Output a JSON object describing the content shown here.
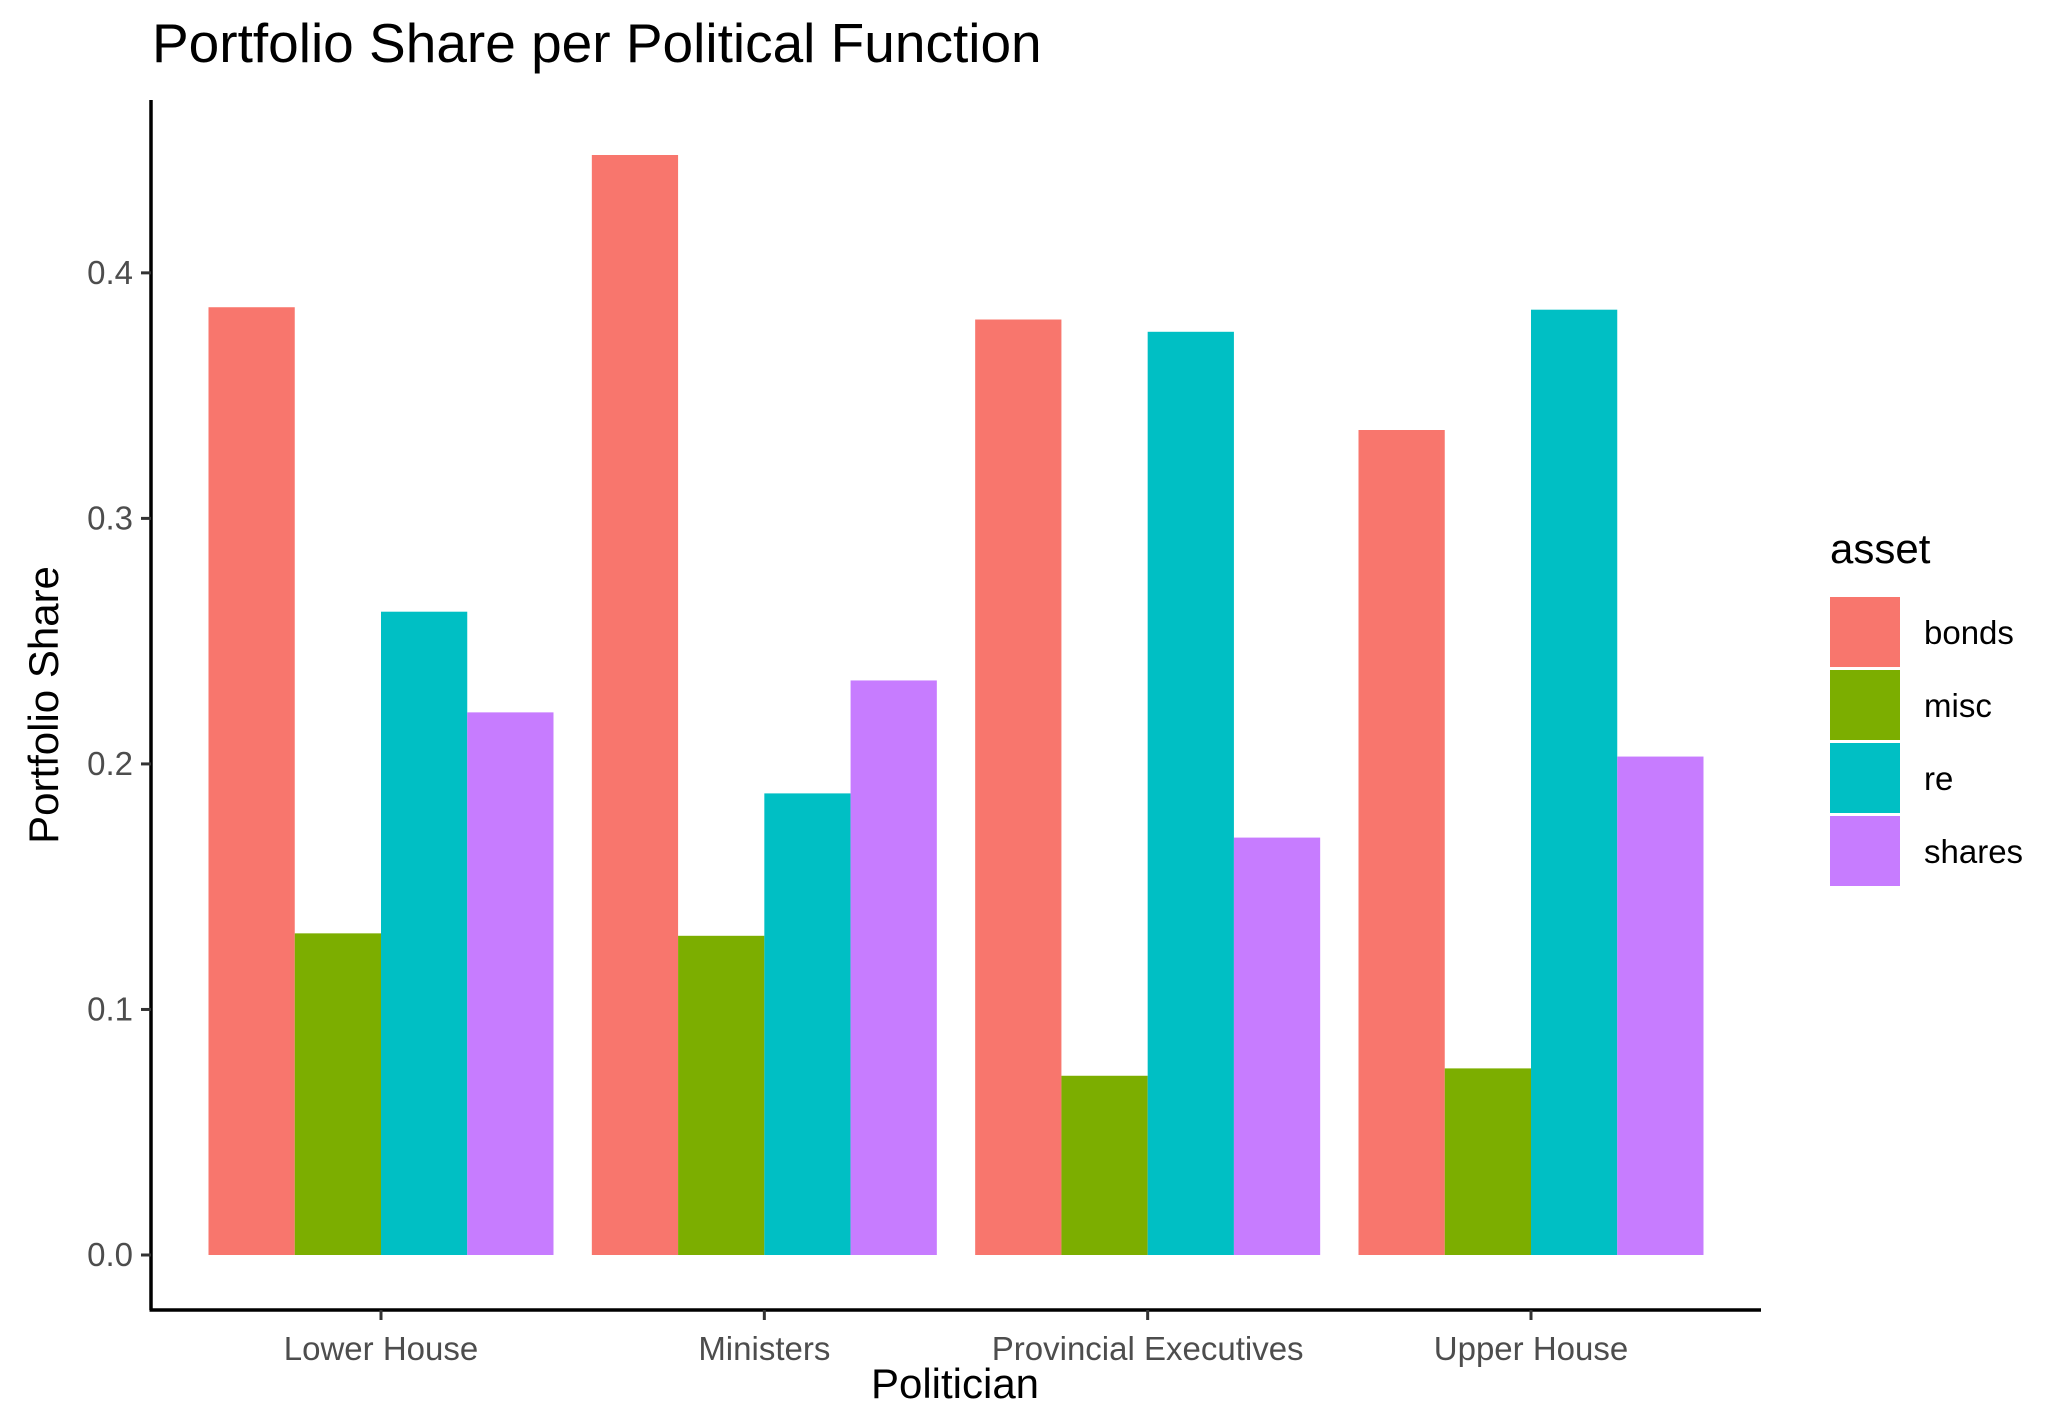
{
  "chart_data": {
    "type": "bar",
    "title": "Portfolio Share per Political Function",
    "xlabel": "Politician",
    "ylabel": "Portfolio Share",
    "categories": [
      "Lower House",
      "Ministers",
      "Provincial Executives",
      "Upper House"
    ],
    "series": [
      {
        "name": "bonds",
        "color": "#F8766D",
        "values": [
          0.386,
          0.448,
          0.381,
          0.336
        ]
      },
      {
        "name": "misc",
        "color": "#7CAE00",
        "values": [
          0.131,
          0.13,
          0.073,
          0.076
        ]
      },
      {
        "name": "re",
        "color": "#00BFC4",
        "values": [
          0.262,
          0.188,
          0.376,
          0.385
        ]
      },
      {
        "name": "shares",
        "color": "#C77CFF",
        "values": [
          0.221,
          0.234,
          0.17,
          0.203
        ]
      }
    ],
    "ylim": [
      -0.0224,
      0.4704
    ],
    "yticks": [
      "0.0",
      "0.1",
      "0.2",
      "0.3",
      "0.4"
    ],
    "legend": {
      "title": "asset",
      "position": "right"
    },
    "grid": false,
    "position": "dodge"
  }
}
